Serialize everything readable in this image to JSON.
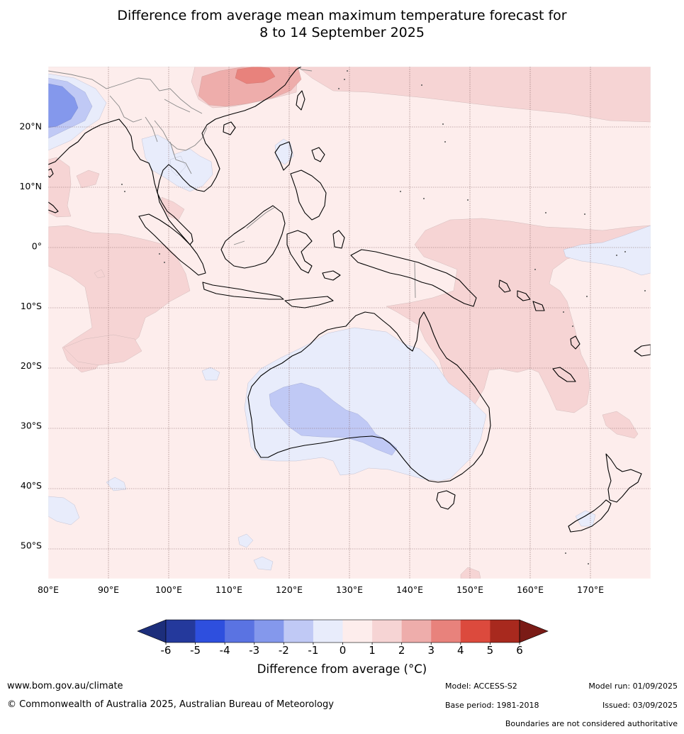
{
  "title": {
    "line1": "Difference from average mean maximum temperature forecast for",
    "line2": "8 to 14 September 2025"
  },
  "axes": {
    "lat_labels": [
      "20°N",
      "10°N",
      "0°",
      "10°S",
      "20°S",
      "30°S",
      "40°S",
      "50°S"
    ],
    "lon_labels": [
      "80°E",
      "90°E",
      "100°E",
      "110°E",
      "120°E",
      "130°E",
      "140°E",
      "150°E",
      "160°E",
      "170°E"
    ],
    "lat_values": [
      20,
      10,
      0,
      -10,
      -20,
      -30,
      -40,
      -50
    ],
    "lon_values": [
      80,
      90,
      100,
      110,
      120,
      130,
      140,
      150,
      160,
      170
    ],
    "lon_range": [
      80,
      180
    ],
    "lat_range": [
      -55.5,
      30
    ]
  },
  "colorbar": {
    "title": "Difference from average (°C)",
    "tick_labels": [
      "-6",
      "-5",
      "-4",
      "-3",
      "-2",
      "-1",
      "0",
      "1",
      "2",
      "3",
      "4",
      "5",
      "6"
    ],
    "colors": [
      "#24399c",
      "#2e4fde",
      "#5a73e2",
      "#8498ec",
      "#c0c9f5",
      "#e8ecfb",
      "#fdedec",
      "#f6d4d4",
      "#eeadab",
      "#e8827c",
      "#dc4a3d",
      "#a8291e"
    ],
    "extend_low_color": "#1c2e7b",
    "extend_high_color": "#7a1b16"
  },
  "footer": {
    "url": "www.bom.gov.au/climate",
    "copyright": "© Commonwealth of Australia 2025, Australian Bureau of Meteorology",
    "model": "Model: ACCESS-S2",
    "base_period": "Base period: 1981-2018",
    "model_run": "Model run: 01/09/2025",
    "issued": "Issued: 03/09/2025",
    "disclaimer": "Boundaries are not considered authoritative"
  },
  "colors": {
    "background_anomaly": "#fdedec",
    "land_outline": "#000000",
    "border_outline": "#888888",
    "gridline": "#8c6b6b"
  }
}
